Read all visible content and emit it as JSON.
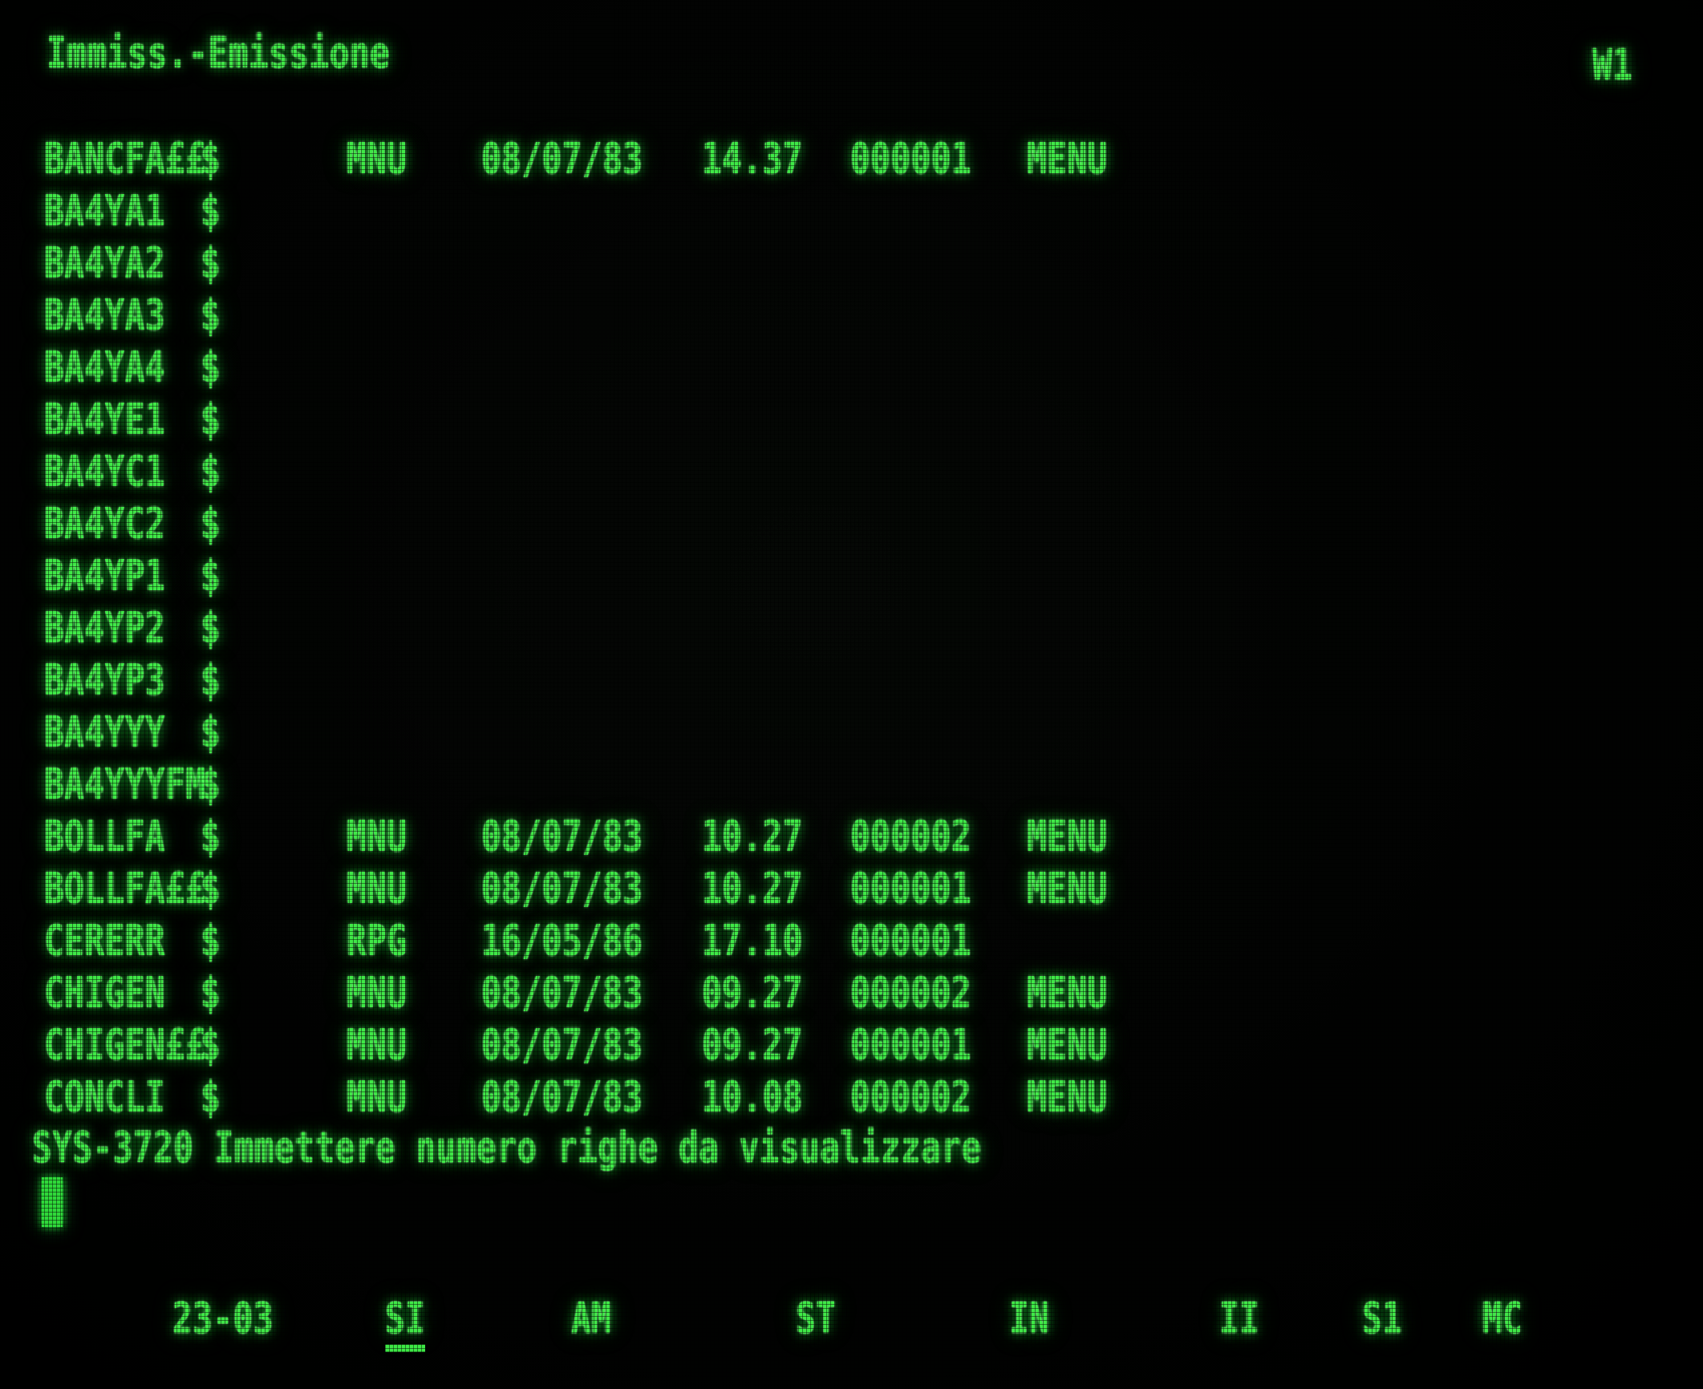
{
  "colors": {
    "phosphor_green": "#3fe847",
    "background": "#000000"
  },
  "header": {
    "title": "Immiss.-Emissione",
    "workstation_indicator": "W1"
  },
  "file_table": {
    "rows": [
      {
        "name": "BANCFA££",
        "attr": "$",
        "type": "MNU",
        "date": "08/07/83",
        "time": "14.37",
        "records": "000001",
        "kind": "MENU"
      },
      {
        "name": "BA4YA1",
        "attr": "$",
        "type": "",
        "date": "",
        "time": "",
        "records": "",
        "kind": ""
      },
      {
        "name": "BA4YA2",
        "attr": "$",
        "type": "",
        "date": "",
        "time": "",
        "records": "",
        "kind": ""
      },
      {
        "name": "BA4YA3",
        "attr": "$",
        "type": "",
        "date": "",
        "time": "",
        "records": "",
        "kind": ""
      },
      {
        "name": "BA4YA4",
        "attr": "$",
        "type": "",
        "date": "",
        "time": "",
        "records": "",
        "kind": ""
      },
      {
        "name": "BA4YE1",
        "attr": "$",
        "type": "",
        "date": "",
        "time": "",
        "records": "",
        "kind": ""
      },
      {
        "name": "BA4YC1",
        "attr": "$",
        "type": "",
        "date": "",
        "time": "",
        "records": "",
        "kind": ""
      },
      {
        "name": "BA4YC2",
        "attr": "$",
        "type": "",
        "date": "",
        "time": "",
        "records": "",
        "kind": ""
      },
      {
        "name": "BA4YP1",
        "attr": "$",
        "type": "",
        "date": "",
        "time": "",
        "records": "",
        "kind": ""
      },
      {
        "name": "BA4YP2",
        "attr": "$",
        "type": "",
        "date": "",
        "time": "",
        "records": "",
        "kind": ""
      },
      {
        "name": "BA4YP3",
        "attr": "$",
        "type": "",
        "date": "",
        "time": "",
        "records": "",
        "kind": ""
      },
      {
        "name": "BA4YYY",
        "attr": "$",
        "type": "",
        "date": "",
        "time": "",
        "records": "",
        "kind": ""
      },
      {
        "name": "BA4YYYFM",
        "attr": "$",
        "type": "",
        "date": "",
        "time": "",
        "records": "",
        "kind": ""
      },
      {
        "name": "BOLLFA",
        "attr": "$",
        "type": "MNU",
        "date": "08/07/83",
        "time": "10.27",
        "records": "000002",
        "kind": "MENU"
      },
      {
        "name": "BOLLFA££",
        "attr": "$",
        "type": "MNU",
        "date": "08/07/83",
        "time": "10.27",
        "records": "000001",
        "kind": "MENU"
      },
      {
        "name": "CERERR",
        "attr": "$",
        "type": "RPG",
        "date": "16/05/86",
        "time": "17.10",
        "records": "000001",
        "kind": ""
      },
      {
        "name": "CHIGEN",
        "attr": "$",
        "type": "MNU",
        "date": "08/07/83",
        "time": "09.27",
        "records": "000002",
        "kind": "MENU"
      },
      {
        "name": "CHIGEN££",
        "attr": "$",
        "type": "MNU",
        "date": "08/07/83",
        "time": "09.27",
        "records": "000001",
        "kind": "MENU"
      },
      {
        "name": "CONCLI",
        "attr": "$",
        "type": "MNU",
        "date": "08/07/83",
        "time": "10.08",
        "records": "000002",
        "kind": "MENU"
      }
    ]
  },
  "prompt": {
    "message": "SYS-3720 Immettere numero righe da visualizzare"
  },
  "status_bar": {
    "position_counter": "23-03",
    "indicators": [
      {
        "label": "SI",
        "underlined": true
      },
      {
        "label": "AM",
        "underlined": false
      },
      {
        "label": "ST",
        "underlined": false
      },
      {
        "label": "IN",
        "underlined": false
      },
      {
        "label": "II",
        "underlined": false
      },
      {
        "label": "S1",
        "underlined": false
      },
      {
        "label": "MC",
        "underlined": false
      }
    ]
  }
}
